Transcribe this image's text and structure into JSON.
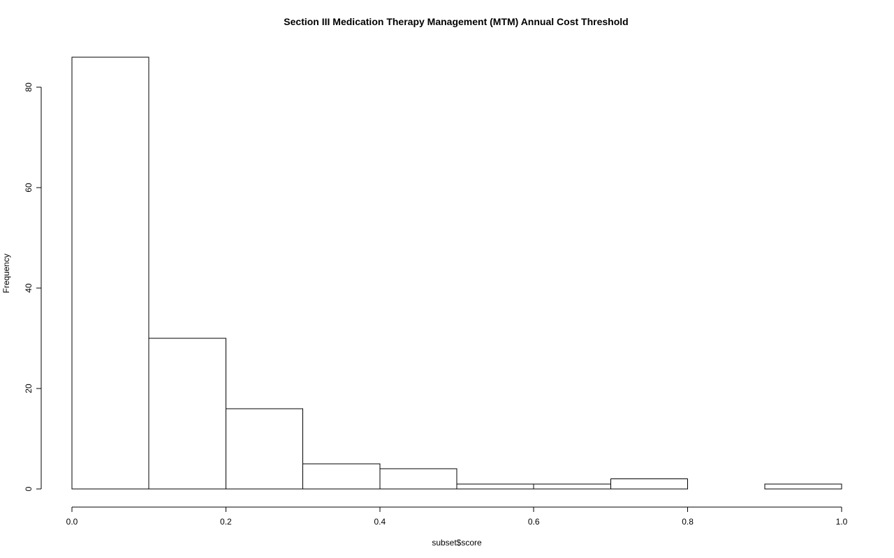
{
  "chart_data": {
    "type": "bar",
    "subtype": "histogram",
    "title": "Section III Medication Therapy Management (MTM) Annual Cost Threshold",
    "xlabel": "subset$score",
    "ylabel": "Frequency",
    "bins": [
      {
        "start": 0.0,
        "end": 0.1,
        "count": 86
      },
      {
        "start": 0.1,
        "end": 0.2,
        "count": 30
      },
      {
        "start": 0.2,
        "end": 0.3,
        "count": 16
      },
      {
        "start": 0.3,
        "end": 0.4,
        "count": 5
      },
      {
        "start": 0.4,
        "end": 0.5,
        "count": 4
      },
      {
        "start": 0.5,
        "end": 0.6,
        "count": 1
      },
      {
        "start": 0.6,
        "end": 0.7,
        "count": 1
      },
      {
        "start": 0.7,
        "end": 0.8,
        "count": 2
      },
      {
        "start": 0.8,
        "end": 0.9,
        "count": 0
      },
      {
        "start": 0.9,
        "end": 1.0,
        "count": 1
      }
    ],
    "xlim": [
      0,
      1
    ],
    "ylim": [
      0,
      86
    ],
    "x_ticks": [
      "0.0",
      "0.2",
      "0.4",
      "0.6",
      "0.8",
      "1.0"
    ],
    "y_ticks": [
      "0",
      "20",
      "40",
      "60",
      "80"
    ],
    "grid": false,
    "legend": "none",
    "bar_fill": "#ffffff",
    "bar_stroke": "#000000"
  }
}
